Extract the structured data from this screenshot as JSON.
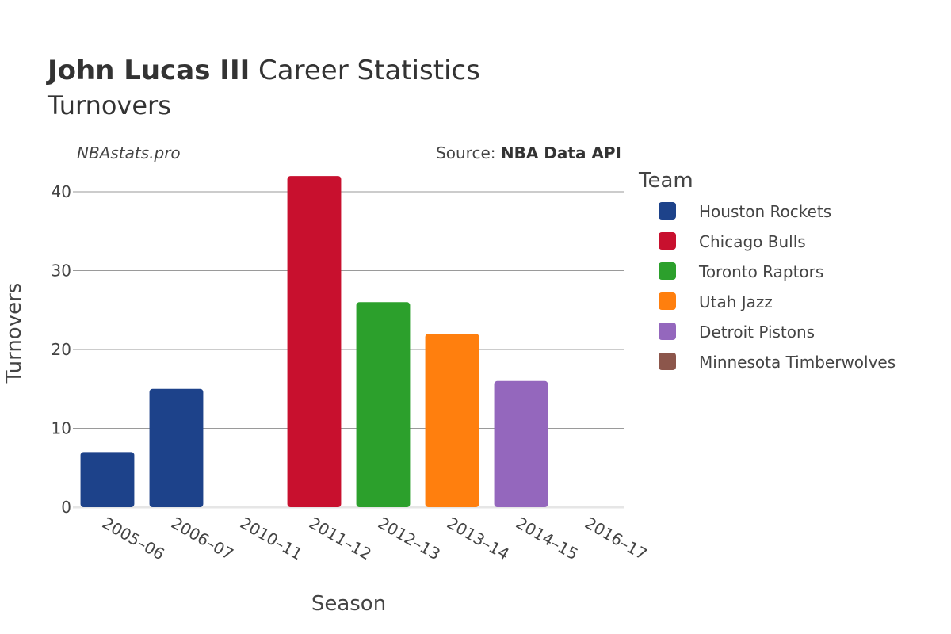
{
  "title": {
    "bold": "John Lucas III",
    "rest": " Career Statistics"
  },
  "subtitle": "Turnovers",
  "watermark": "NBAstats.pro",
  "source": {
    "prefix": "Source: ",
    "name": "NBA Data API"
  },
  "legend": {
    "title": "Team"
  },
  "colors": {
    "Houston Rockets": "#1d428a",
    "Chicago Bulls": "#c8102e",
    "Toronto Raptors": "#2ca02c",
    "Utah Jazz": "#ff7f0e",
    "Detroit Pistons": "#9467bd",
    "Minnesota Timberwolves": "#8c564b"
  },
  "chart_data": {
    "type": "bar",
    "xlabel": "Season",
    "ylabel": "Turnovers",
    "ylim": [
      0,
      42
    ],
    "yticks": [
      0,
      10,
      20,
      30,
      40
    ],
    "grid": true,
    "legend_position": "right",
    "categories": [
      "2005–06",
      "2006–07",
      "2010–11",
      "2011–12",
      "2012–13",
      "2013–14",
      "2014–15",
      "2016–17"
    ],
    "bars": [
      {
        "season": "2005–06",
        "team": "Houston Rockets",
        "value": 7
      },
      {
        "season": "2006–07",
        "team": "Houston Rockets",
        "value": 15
      },
      {
        "season": "2010–11",
        "team": "Houston Rockets",
        "value": 0
      },
      {
        "season": "2011–12",
        "team": "Chicago Bulls",
        "value": 42
      },
      {
        "season": "2012–13",
        "team": "Toronto Raptors",
        "value": 26
      },
      {
        "season": "2013–14",
        "team": "Utah Jazz",
        "value": 22
      },
      {
        "season": "2014–15",
        "team": "Detroit Pistons",
        "value": 16
      },
      {
        "season": "2016–17",
        "team": "Minnesota Timberwolves",
        "value": 0
      }
    ],
    "series": [
      {
        "name": "Houston Rockets"
      },
      {
        "name": "Chicago Bulls"
      },
      {
        "name": "Toronto Raptors"
      },
      {
        "name": "Utah Jazz"
      },
      {
        "name": "Detroit Pistons"
      },
      {
        "name": "Minnesota Timberwolves"
      }
    ]
  }
}
